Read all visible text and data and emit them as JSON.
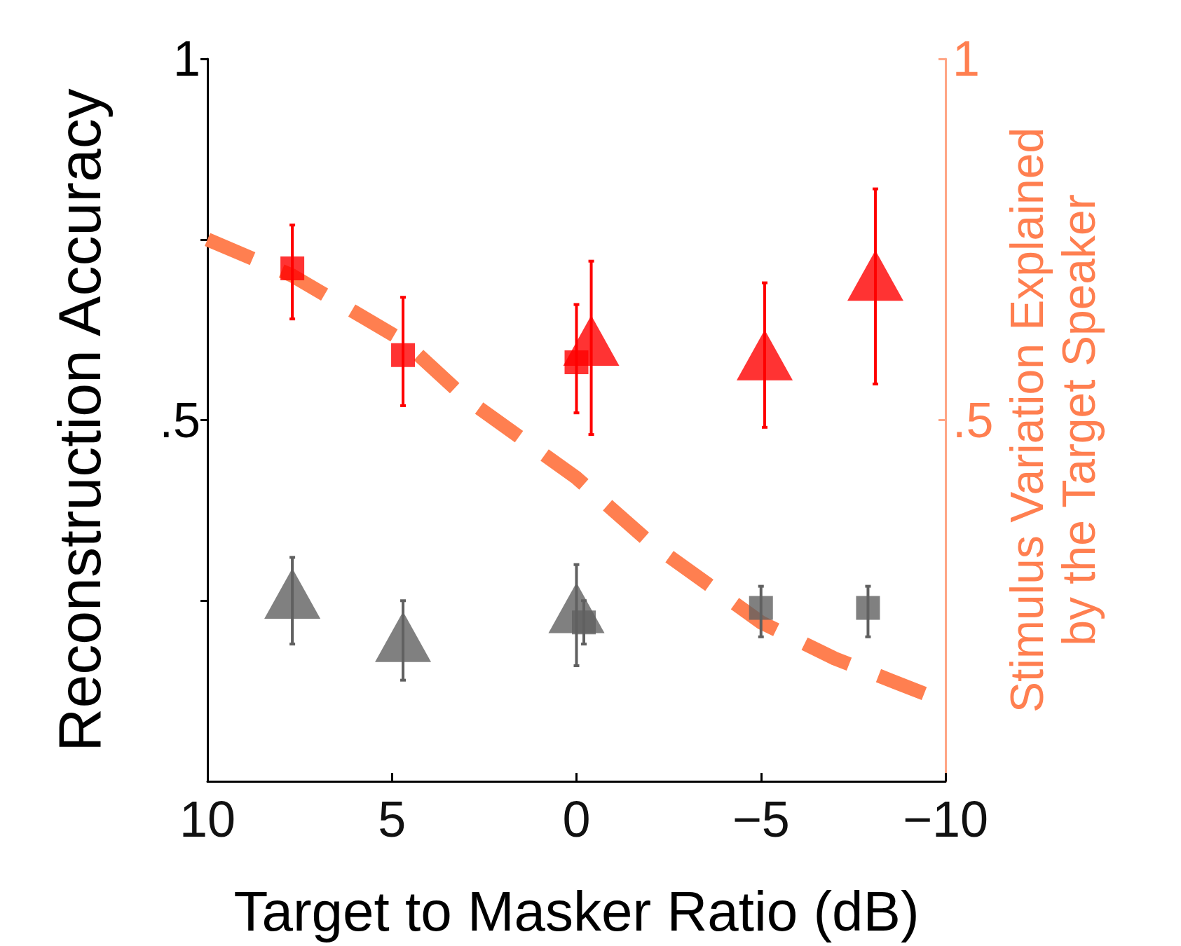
{
  "chart_data": {
    "type": "scatter",
    "xlabel": "Target to Masker Ratio (dB)",
    "ylabel": "Reconstruction Accuracy",
    "y2label": "Stimulus Variation Explained\nby the Target Speaker",
    "xlim": [
      10,
      -10
    ],
    "xticks": [
      10,
      5,
      0,
      -5,
      -10
    ],
    "ylim": [
      0,
      1
    ],
    "yticks": [
      {
        "value": 0.25,
        "label": null
      },
      {
        "value": 0.5,
        "label": ".5"
      },
      {
        "value": 0.75,
        "label": null
      },
      1
    ],
    "y2lim": [
      0,
      1
    ],
    "y2ticks": [
      {
        "value": 0.5,
        "label": ".5"
      },
      1
    ],
    "grid": false,
    "series": [
      {
        "marker": "square",
        "color": "#ff0000",
        "x": [
          7.7,
          4.7,
          0
        ],
        "values": [
          0.71,
          0.59,
          0.58
        ],
        "errors": [
          [
            0.64,
            0.77
          ],
          [
            0.52,
            0.67
          ],
          [
            0.51,
            0.66
          ]
        ]
      },
      {
        "marker": "triangle",
        "color": "#ff0000",
        "x": [
          -0.4,
          -5.1,
          -8.1
        ],
        "values": [
          0.61,
          0.59,
          0.7
        ],
        "errors": [
          [
            0.48,
            0.72
          ],
          [
            0.49,
            0.69
          ],
          [
            0.55,
            0.82
          ]
        ]
      },
      {
        "marker": "triangle",
        "color": "#606060",
        "x": [
          7.7,
          4.7,
          0
        ],
        "values": [
          0.26,
          0.2,
          0.24
        ],
        "errors": [
          [
            0.19,
            0.31
          ],
          [
            0.14,
            0.25
          ],
          [
            0.16,
            0.3
          ]
        ]
      },
      {
        "marker": "square",
        "color": "#606060",
        "x": [
          -0.2,
          -5,
          -7.9
        ],
        "values": [
          0.22,
          0.24,
          0.24
        ],
        "errors": [
          [
            0.19,
            0.25
          ],
          [
            0.2,
            0.27
          ],
          [
            0.2,
            0.27
          ]
        ]
      },
      {
        "type": "line",
        "axis": "y2",
        "marker": "none",
        "line_style": "dashed",
        "color": "#ff7f50",
        "x": [
          10,
          7.7,
          4.7,
          3,
          0,
          -2,
          -5,
          -7,
          -10
        ],
        "values": [
          0.75,
          0.7,
          0.61,
          0.53,
          0.42,
          0.33,
          0.22,
          0.17,
          0.11
        ]
      }
    ]
  }
}
